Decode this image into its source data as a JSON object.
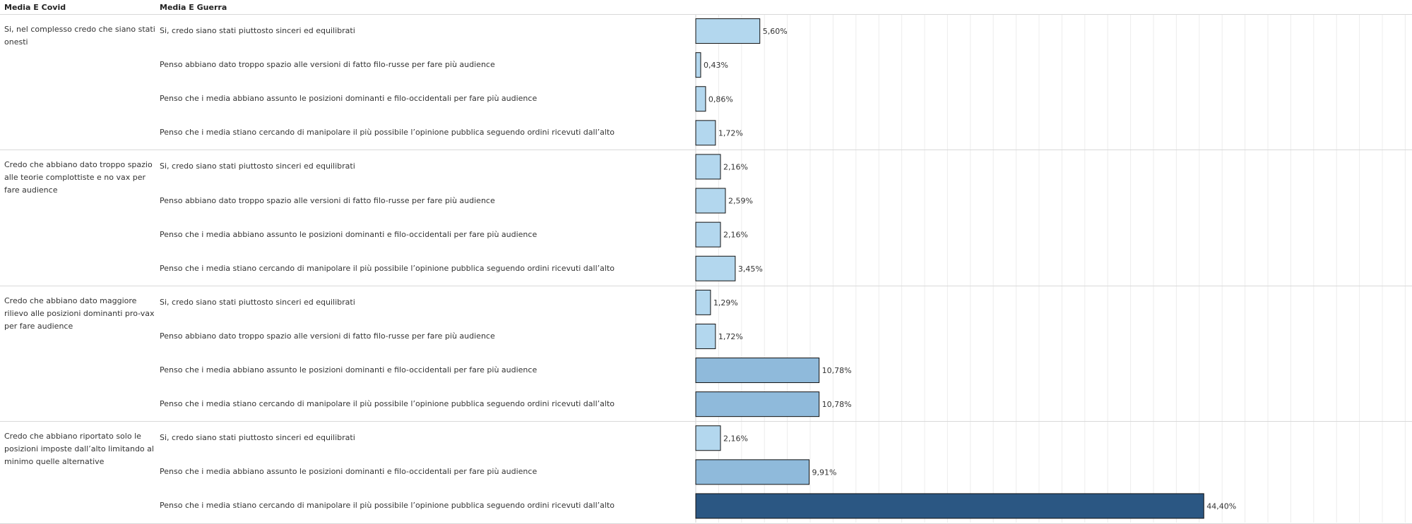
{
  "headers": {
    "col1": "Media E Covid",
    "col2": "Media E Guerra"
  },
  "chart_data": {
    "type": "bar",
    "orientation": "horizontal",
    "groups": [
      {
        "label": "Si, nel complesso credo che siano stati onesti",
        "rows": [
          {
            "label": "Si, credo siano stati piuttosto sinceri ed equilibrati",
            "value": 5.6,
            "text": "5,60%"
          },
          {
            "label": "Penso abbiano dato troppo spazio alle versioni di fatto filo-russe per fare più audience",
            "value": 0.43,
            "text": "0,43%"
          },
          {
            "label": "Penso che i media abbiano assunto le posizioni dominanti e filo-occidentali per fare più audience",
            "value": 0.86,
            "text": "0,86%"
          },
          {
            "label": "Penso che i media stiano cercando di manipolare il più possibile l’opinione pubblica seguendo ordini ricevuti dall’alto",
            "value": 1.72,
            "text": "1,72%"
          }
        ]
      },
      {
        "label": "Credo che abbiano dato troppo spazio alle teorie complottiste e no vax per fare audience",
        "rows": [
          {
            "label": "Si, credo siano stati piuttosto sinceri ed equilibrati",
            "value": 2.16,
            "text": "2,16%"
          },
          {
            "label": "Penso abbiano dato troppo spazio alle versioni di fatto filo-russe per fare più audience",
            "value": 2.59,
            "text": "2,59%"
          },
          {
            "label": "Penso che i media abbiano assunto le posizioni dominanti e filo-occidentali per fare più audience",
            "value": 2.16,
            "text": "2,16%"
          },
          {
            "label": "Penso che i media stiano cercando di manipolare il più possibile l’opinione pubblica seguendo ordini ricevuti dall’alto",
            "value": 3.45,
            "text": "3,45%"
          }
        ]
      },
      {
        "label": "Credo che abbiano dato maggiore rilievo alle posizioni dominanti pro-vax per fare audience",
        "rows": [
          {
            "label": "Si, credo siano stati piuttosto sinceri ed equilibrati",
            "value": 1.29,
            "text": "1,29%"
          },
          {
            "label": "Penso abbiano dato troppo spazio alle versioni di fatto filo-russe per fare più audience",
            "value": 1.72,
            "text": "1,72%"
          },
          {
            "label": "Penso che i media abbiano assunto le posizioni dominanti e filo-occidentali per fare più audience",
            "value": 10.78,
            "text": "10,78%"
          },
          {
            "label": "Penso che i media stiano cercando di manipolare il più possibile l’opinione pubblica seguendo ordini ricevuti dall’alto",
            "value": 10.78,
            "text": "10,78%"
          }
        ]
      },
      {
        "label": "Credo che abbiano riportato solo le posizioni imposte dall’alto limitando al minimo quelle alternative",
        "rows": [
          {
            "label": "Si, credo siano stati piuttosto sinceri ed equilibrati",
            "value": 2.16,
            "text": "2,16%"
          },
          {
            "label": "Penso che i media abbiano assunto le posizioni dominanti e filo-occidentali per fare più audience",
            "value": 9.91,
            "text": "9,91%"
          },
          {
            "label": "Penso che i media stiano cercando di manipolare il più possibile l’opinione pubblica seguendo ordini ricevuti dall’alto",
            "value": 44.4,
            "text": "44,40%"
          }
        ]
      }
    ],
    "xlim": [
      0,
      49
    ],
    "grid": true,
    "colors": {
      "low": "#b3d7ee",
      "mid": "#8fbadb",
      "high": "#2b5783",
      "outline": "#111111",
      "grid": "#ececec"
    }
  }
}
